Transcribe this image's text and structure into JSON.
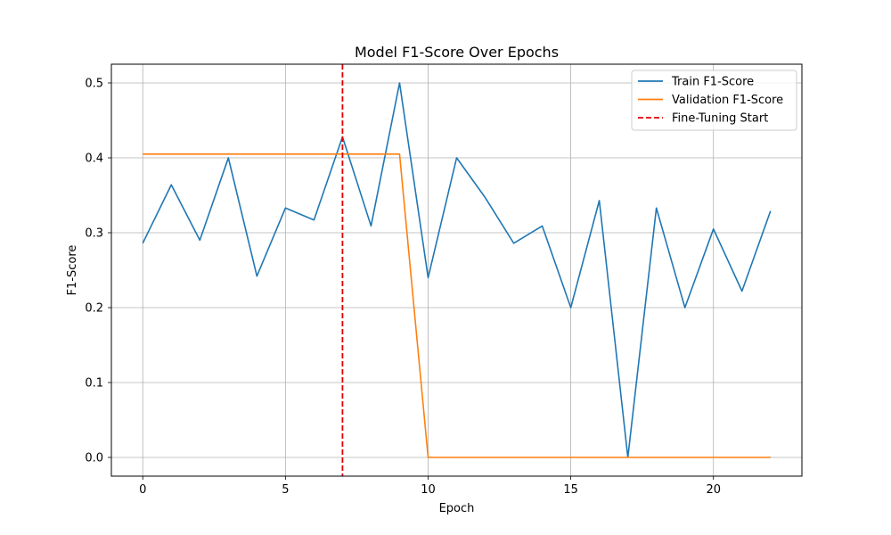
{
  "chart_data": {
    "type": "line",
    "title": "Model F1-Score Over Epochs",
    "xlabel": "Epoch",
    "ylabel": "F1-Score",
    "xlim": [
      -1.1,
      23.1
    ],
    "ylim": [
      -0.025,
      0.525
    ],
    "xticks": [
      0,
      5,
      10,
      15,
      20
    ],
    "yticks": [
      0.0,
      0.1,
      0.2,
      0.3,
      0.4,
      0.5
    ],
    "ytick_labels": [
      "0.0",
      "0.1",
      "0.2",
      "0.3",
      "0.4",
      "0.5"
    ],
    "grid": true,
    "legend_position": "upper right",
    "x": [
      0,
      1,
      2,
      3,
      4,
      5,
      6,
      7,
      8,
      9,
      10,
      11,
      12,
      13,
      14,
      15,
      16,
      17,
      18,
      19,
      20,
      21,
      22
    ],
    "series": [
      {
        "name": "Train F1-Score",
        "color": "#1f77b4",
        "style": "solid",
        "values": [
          0.286,
          0.364,
          0.29,
          0.4,
          0.242,
          0.333,
          0.317,
          0.428,
          0.309,
          0.5,
          0.24,
          0.4,
          0.347,
          0.286,
          0.309,
          0.2,
          0.343,
          0.0,
          0.333,
          0.2,
          0.305,
          0.222,
          0.329
        ]
      },
      {
        "name": "Validation F1-Score",
        "color": "#ff7f0e",
        "style": "solid",
        "values": [
          0.405,
          0.405,
          0.405,
          0.405,
          0.405,
          0.405,
          0.405,
          0.405,
          0.405,
          0.405,
          0.0,
          0.0,
          0.0,
          0.0,
          0.0,
          0.0,
          0.0,
          0.0,
          0.0,
          0.0,
          0.0,
          0.0,
          0.0
        ]
      }
    ],
    "vlines": [
      {
        "name": "Fine-Tuning Start",
        "x": 7,
        "color": "#e00000",
        "style": "dashed"
      }
    ]
  }
}
